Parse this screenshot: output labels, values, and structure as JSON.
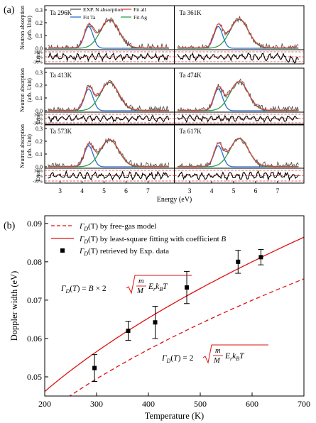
{
  "figure": {
    "label_a": "(a)",
    "label_b": "(b)"
  },
  "colors": {
    "exp": "#555555",
    "fit_all": "#e8403a",
    "fit_ta": "#2a6fcf",
    "fit_ag": "#2e9e4a",
    "error": "#000000",
    "ref_line": "#e03030",
    "model": "#e01010",
    "points": "#000000"
  },
  "chart_data": [
    {
      "type": "line",
      "panel": "a",
      "xlabel": "Energy (eV)",
      "x_ticks": [
        "3",
        "4",
        "5",
        "6",
        "7"
      ],
      "xlim": [
        2.3,
        8.2
      ],
      "ylabel_absorption": "Neutron absorption (arb. Unit)",
      "ylabel_absorption_line1": "Neutron absorption",
      "ylabel_absorption_line2": "(arb. Unit)",
      "ylabel_error": "Error",
      "ylim_absorption": [
        0,
        0.3
      ],
      "y_ticks_absorption": [
        "0.0",
        "0.1",
        "0.2",
        "0.3"
      ],
      "error_ticks": [
        "30%",
        "0%",
        "-30%"
      ],
      "error_values": [
        30,
        0,
        -30
      ],
      "legend": [
        {
          "name": "EXP. N absorption",
          "color": "#555555"
        },
        {
          "name": "Fit all",
          "color": "#e8403a"
        },
        {
          "name": "Fit Ta",
          "color": "#2a6fcf"
        },
        {
          "name": "Fit Ag",
          "color": "#2e9e4a"
        }
      ],
      "panels": [
        {
          "label": "Ta 296K",
          "ta_peak": 0.17,
          "ag_peak": 0.22
        },
        {
          "label": "Ta 361K",
          "ta_peak": 0.17,
          "ag_peak": 0.225
        },
        {
          "label": "Ta 413K",
          "ta_peak": 0.17,
          "ag_peak": 0.22
        },
        {
          "label": "Ta 474K",
          "ta_peak": 0.17,
          "ag_peak": 0.225
        },
        {
          "label": "Ta 573K",
          "ta_peak": 0.165,
          "ag_peak": 0.21
        },
        {
          "label": "Ta 617K",
          "ta_peak": 0.165,
          "ag_peak": 0.22
        }
      ]
    },
    {
      "type": "scatter",
      "panel": "b",
      "xlabel": "Temperature (K)",
      "ylabel": "Doppler width (eV)",
      "xlim": [
        200,
        700
      ],
      "ylim": [
        0.045,
        0.092
      ],
      "x_ticks": [
        200,
        300,
        400,
        500,
        600,
        700
      ],
      "y_ticks": [
        0.05,
        0.06,
        0.07,
        0.08,
        0.09
      ],
      "y_tick_labels": [
        "0.05",
        "0.06",
        "0.07",
        "0.08",
        "0.09"
      ],
      "legend": [
        {
          "name": "Γ_D(T) by free-gas model",
          "text": "(T) by free-gas model",
          "style": "dashed"
        },
        {
          "name": "Γ_D(T) by least-square fitting with coefficient B",
          "text": "(T) by least-square fitting with coefficient ",
          "style": "solid"
        },
        {
          "name": "Γ_D(T) retrieved by Exp. data",
          "text": "(T) retrieved by Exp. data",
          "style": "marker"
        }
      ],
      "points": {
        "x": [
          296,
          361,
          413,
          474,
          573,
          617
        ],
        "y": [
          0.0523,
          0.062,
          0.0642,
          0.0733,
          0.08,
          0.0812
        ],
        "err": [
          0.0035,
          0.0025,
          0.0042,
          0.0042,
          0.003,
          0.002
        ]
      },
      "free_gas_coefficient": 0.002856,
      "fit_coefficient": 0.003266,
      "annotation_fit": "Γ_D(T) = B × 2√(m E_r k_B T / M)",
      "annotation_free_gas": "Γ_D(T) = 2√(m E_r k_B T / M)"
    }
  ]
}
